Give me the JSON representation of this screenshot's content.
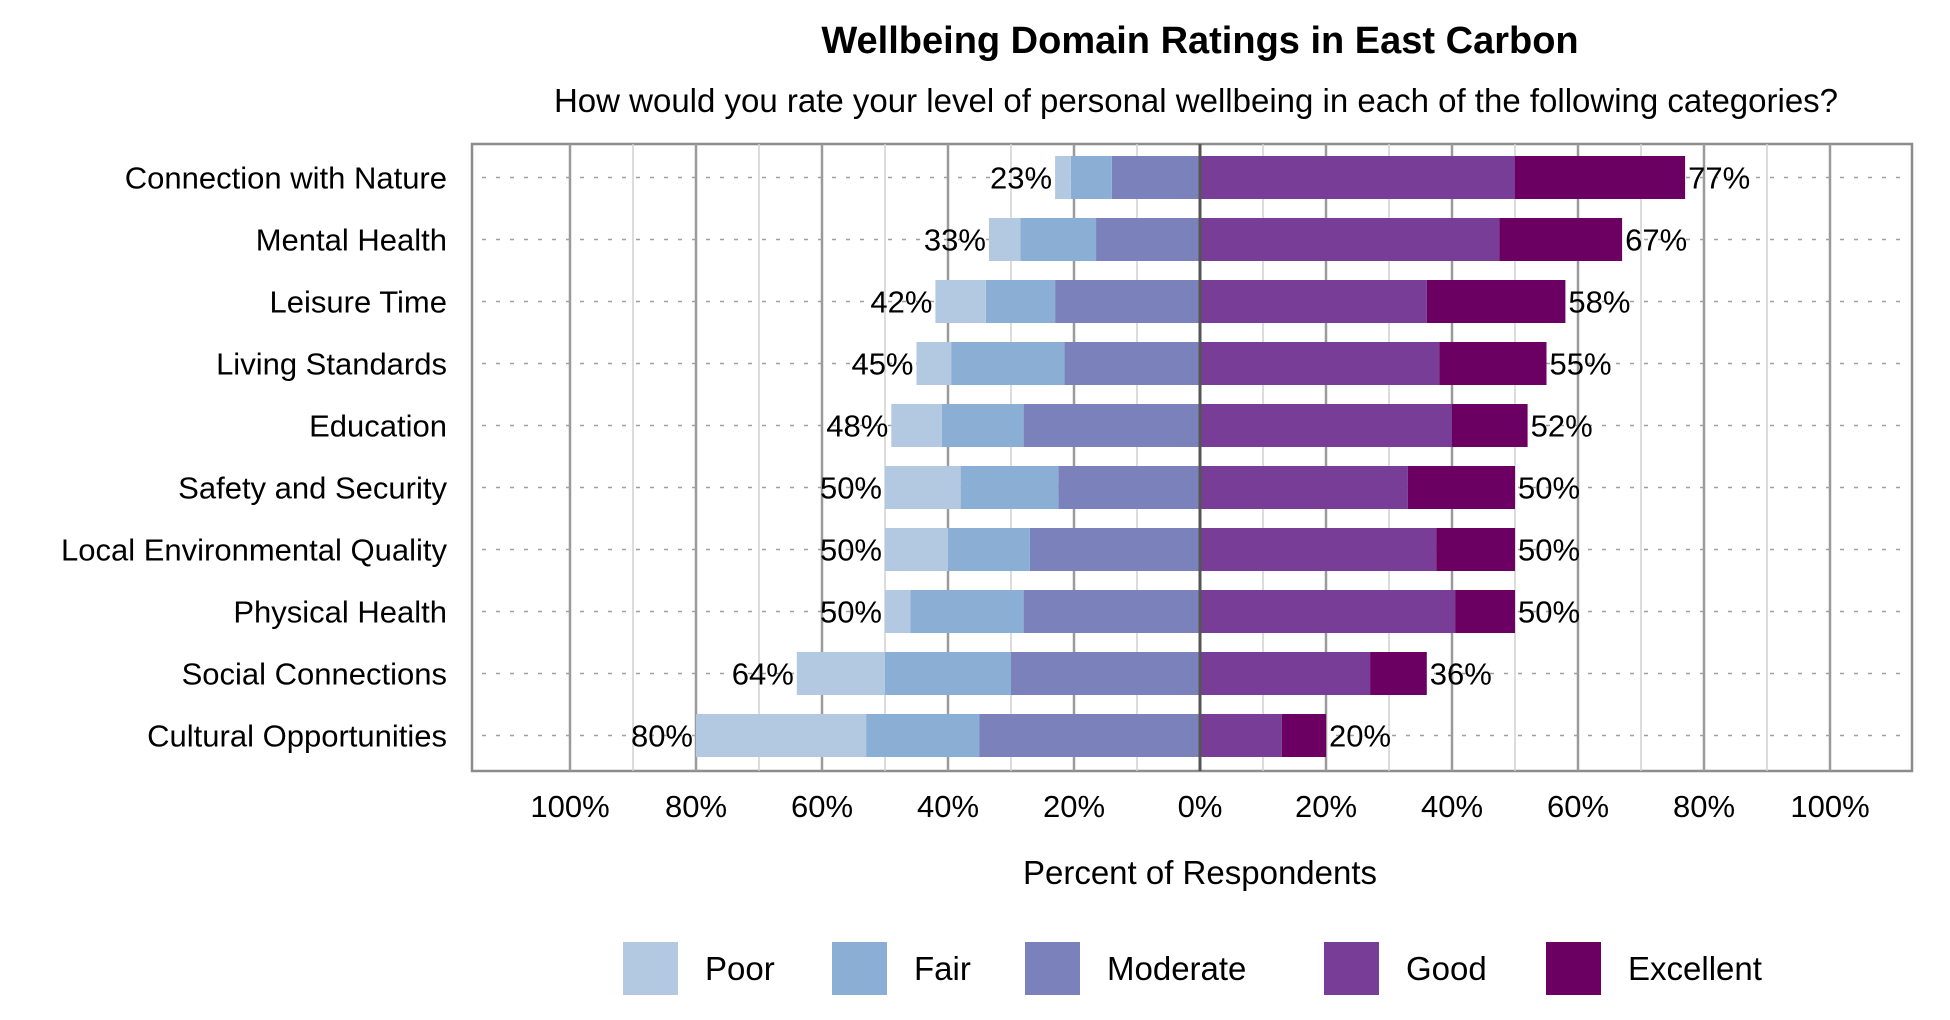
{
  "chart_data": {
    "type": "bar",
    "orientation": "horizontal",
    "stacking": "diverging",
    "title": "Wellbeing Domain Ratings in East Carbon",
    "subtitle": "How would you rate your level of personal wellbeing in each of the following categories?",
    "xlabel": "Percent of Respondents",
    "xlim": [
      -100,
      100
    ],
    "xticks": [
      -100,
      -80,
      -60,
      -40,
      -20,
      0,
      20,
      40,
      60,
      80,
      100
    ],
    "xtick_labels": [
      "100%",
      "80%",
      "60%",
      "40%",
      "20%",
      "0%",
      "20%",
      "40%",
      "60%",
      "80%",
      "100%"
    ],
    "grid": true,
    "legend_position": "bottom",
    "categories": [
      "Connection with Nature",
      "Mental Health",
      "Leisure Time",
      "Living Standards",
      "Education",
      "Safety and Security",
      "Local Environmental Quality",
      "Physical Health",
      "Social Connections",
      "Cultural Opportunities"
    ],
    "series": [
      {
        "name": "Poor",
        "side": "negative",
        "color": "#b3c8e1",
        "values": [
          2.5,
          5,
          8,
          5.5,
          8,
          12,
          10,
          4,
          14,
          27
        ]
      },
      {
        "name": "Fair",
        "side": "negative",
        "color": "#8bafd4",
        "values": [
          6.5,
          12,
          11,
          18,
          13,
          15.5,
          13,
          18,
          20,
          18
        ]
      },
      {
        "name": "Moderate",
        "side": "negative",
        "color": "#7b82bb",
        "values": [
          14,
          16.5,
          23,
          21.5,
          28,
          22.5,
          27,
          28,
          30,
          35
        ]
      },
      {
        "name": "Good",
        "side": "positive",
        "color": "#783d96",
        "values": [
          50,
          47.5,
          36,
          38,
          40,
          33,
          37.5,
          40.5,
          27,
          13
        ]
      },
      {
        "name": "Excellent",
        "side": "positive",
        "color": "#6b0062",
        "values": [
          27,
          19.5,
          22,
          17,
          12,
          17,
          12.5,
          9.5,
          9,
          7
        ]
      }
    ],
    "negative_totals": [
      "23%",
      "33%",
      "42%",
      "45%",
      "48%",
      "50%",
      "50%",
      "50%",
      "64%",
      "80%"
    ],
    "positive_totals": [
      "77%",
      "67%",
      "58%",
      "55%",
      "52%",
      "50%",
      "50%",
      "50%",
      "36%",
      "20%"
    ]
  }
}
